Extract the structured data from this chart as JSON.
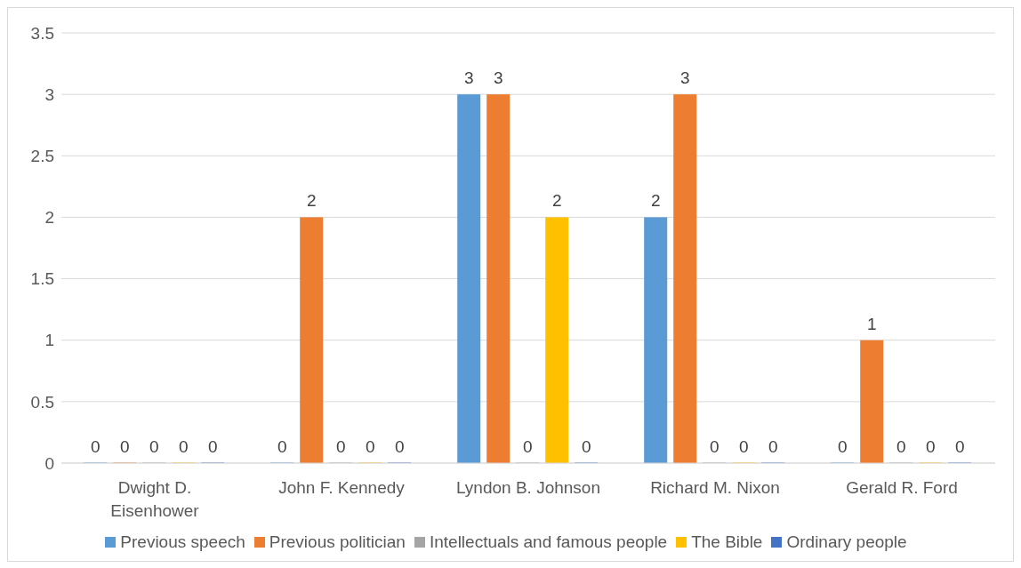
{
  "chart_data": {
    "type": "bar",
    "categories": [
      "Dwight D. Eisenhower",
      "John F. Kennedy",
      "Lyndon B. Johnson",
      "Richard M. Nixon",
      "Gerald R. Ford"
    ],
    "series": [
      {
        "name": "Previous speech",
        "color": "#5b9bd5",
        "values": [
          0,
          0,
          3,
          2,
          0
        ]
      },
      {
        "name": "Previous politician",
        "color": "#ed7d31",
        "values": [
          0,
          2,
          3,
          3,
          1
        ]
      },
      {
        "name": "Intellectuals and famous people",
        "color": "#a5a5a5",
        "values": [
          0,
          0,
          0,
          0,
          0
        ]
      },
      {
        "name": "The Bible",
        "color": "#ffc000",
        "values": [
          0,
          0,
          2,
          0,
          0
        ]
      },
      {
        "name": "Ordinary people",
        "color": "#4472c4",
        "values": [
          0,
          0,
          0,
          0,
          0
        ]
      }
    ],
    "ylim": [
      0,
      3.5
    ],
    "yticks": [
      0,
      0.5,
      1,
      1.5,
      2,
      2.5,
      3,
      3.5
    ],
    "grid": "y",
    "legend": "bottom",
    "data_labels": true
  }
}
